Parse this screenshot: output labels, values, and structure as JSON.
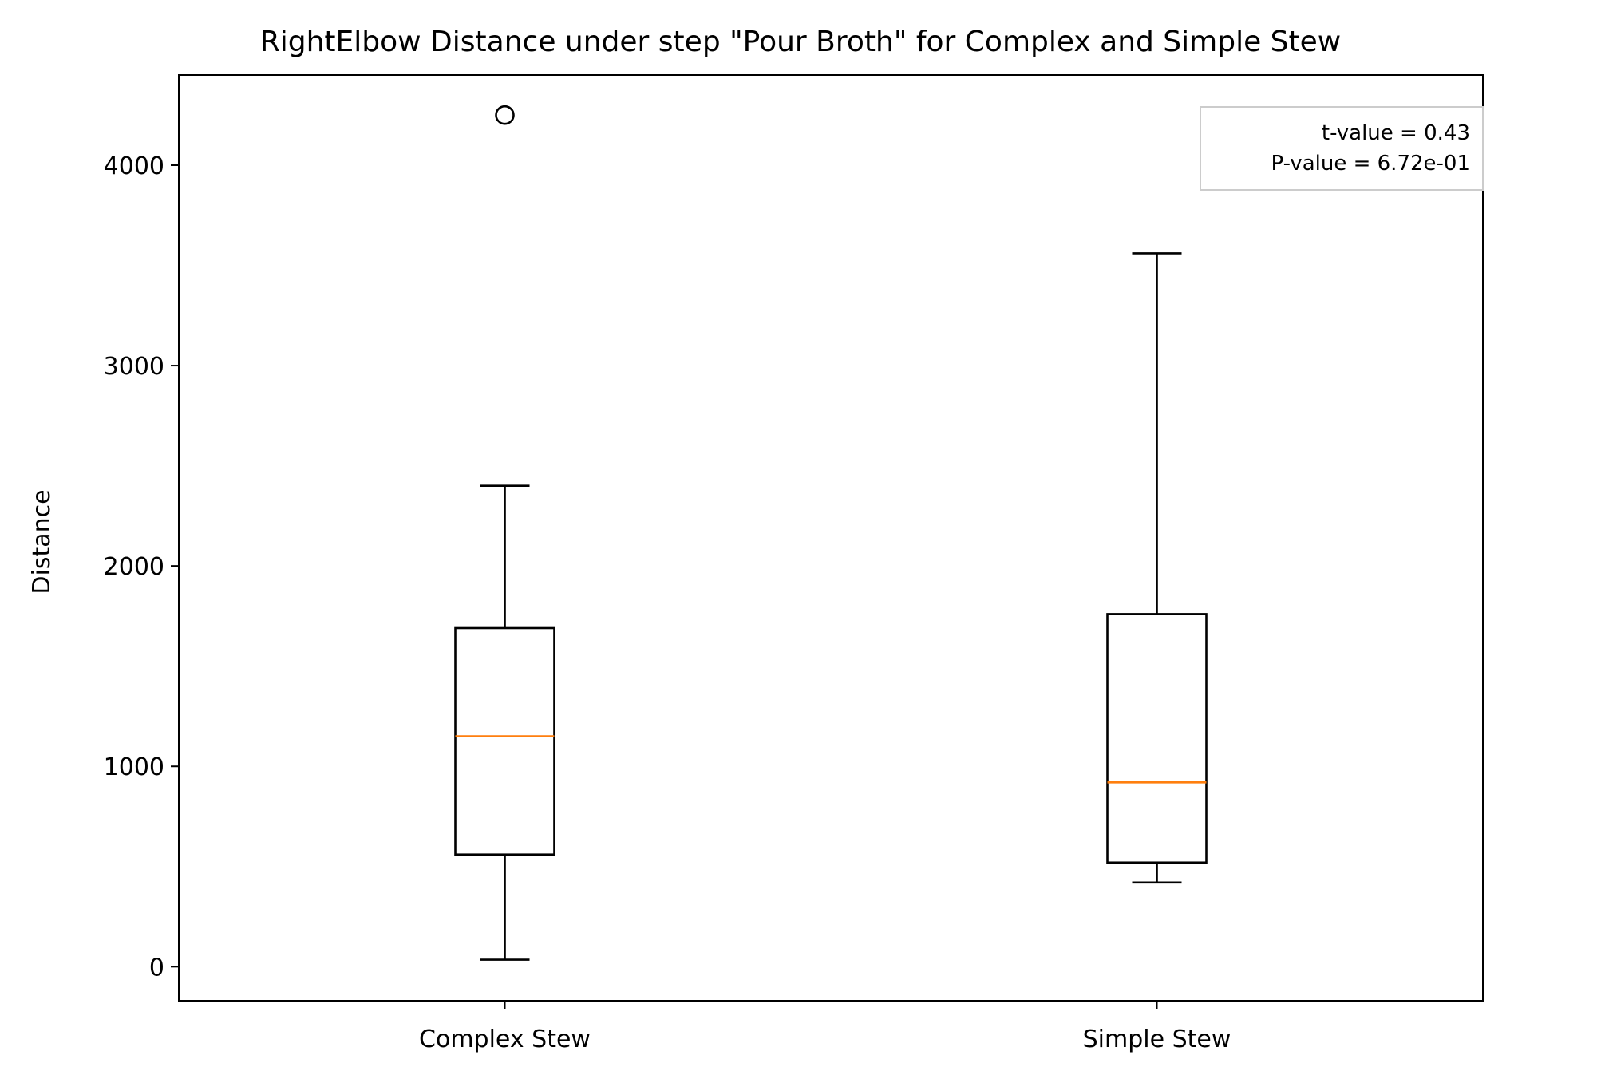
{
  "chart_data": {
    "type": "box",
    "title": "RightElbow Distance under step \"Pour Broth\" for Complex and Simple Stew",
    "xlabel": "",
    "ylabel": "Distance",
    "ylim": [
      -170,
      4450
    ],
    "yticks": [
      0,
      1000,
      2000,
      3000,
      4000
    ],
    "categories": [
      "Complex Stew",
      "Simple Stew"
    ],
    "boxes": [
      {
        "label": "Complex Stew",
        "whisker_low": 35,
        "q1": 560,
        "median": 1150,
        "q3": 1690,
        "whisker_high": 2400,
        "outliers": [
          4250
        ]
      },
      {
        "label": "Simple Stew",
        "whisker_low": 420,
        "q1": 520,
        "median": 920,
        "q3": 1760,
        "whisker_high": 3560,
        "outliers": []
      }
    ],
    "annotation": {
      "lines": [
        "t-value = 0.43",
        "P-value = 6.72e-01"
      ],
      "placement": "top-right"
    },
    "colors": {
      "box": "#000000",
      "median": "#ff7f0e",
      "annotation_border": "#cccccc"
    }
  }
}
